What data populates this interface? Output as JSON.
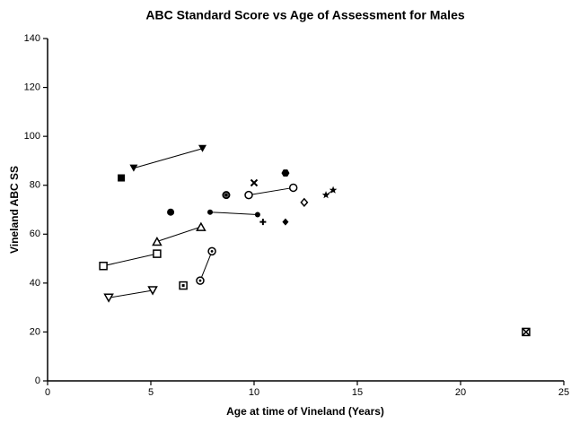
{
  "chart_data": {
    "type": "scatter",
    "title": "ABC Standard Score vs Age of Assessment for Males",
    "x_label": "Age at time of Vineland  (Years)",
    "y_label": "Vineland ABC SS",
    "xlim": [
      0,
      25
    ],
    "xticks": [
      0,
      5,
      10,
      15,
      20,
      25
    ],
    "ylim": [
      0,
      140
    ],
    "yticks": [
      0,
      20,
      40,
      60,
      80,
      100,
      120,
      140
    ],
    "color": "#000000",
    "series": [
      {
        "marker": "square",
        "x": [
          3.57
        ],
        "values": [
          83
        ]
      },
      {
        "marker": "triangle-down",
        "x": [
          4.17,
          7.5
        ],
        "values": [
          87,
          95
        ]
      },
      {
        "marker": "circle",
        "x": [
          5.96
        ],
        "values": [
          69
        ]
      },
      {
        "marker": "circle-ring",
        "x": [
          8.65
        ],
        "values": [
          76
        ]
      },
      {
        "marker": "circle-small",
        "x": [
          7.87,
          10.17
        ],
        "values": [
          69,
          68
        ]
      },
      {
        "marker": "x",
        "x": [
          10.0
        ],
        "values": [
          81
        ]
      },
      {
        "marker": "hexagon",
        "x": [
          11.52
        ],
        "values": [
          85
        ]
      },
      {
        "marker": "circle-open",
        "x": [
          9.74,
          11.9
        ],
        "values": [
          76,
          79
        ]
      },
      {
        "marker": "plus",
        "x": [
          10.43
        ],
        "values": [
          65
        ]
      },
      {
        "marker": "diamond",
        "x": [
          11.52
        ],
        "values": [
          65
        ]
      },
      {
        "marker": "diamond-open",
        "x": [
          12.43
        ],
        "values": [
          73
        ]
      },
      {
        "marker": "star",
        "x": [
          13.48,
          13.83
        ],
        "values": [
          76,
          78
        ]
      },
      {
        "marker": "triangle-open",
        "x": [
          5.3,
          7.43
        ],
        "values": [
          57,
          63
        ]
      },
      {
        "marker": "square-open",
        "x": [
          2.7,
          5.3
        ],
        "values": [
          47,
          52
        ]
      },
      {
        "marker": "triangle-down-open",
        "x": [
          2.96,
          5.09
        ],
        "values": [
          34,
          37
        ]
      },
      {
        "marker": "square-dot",
        "x": [
          6.57
        ],
        "values": [
          39
        ]
      },
      {
        "marker": "circle-dot",
        "x": [
          7.39,
          7.96
        ],
        "values": [
          41,
          53
        ]
      },
      {
        "marker": "square-cross",
        "x": [
          23.17
        ],
        "values": [
          20
        ]
      }
    ]
  }
}
